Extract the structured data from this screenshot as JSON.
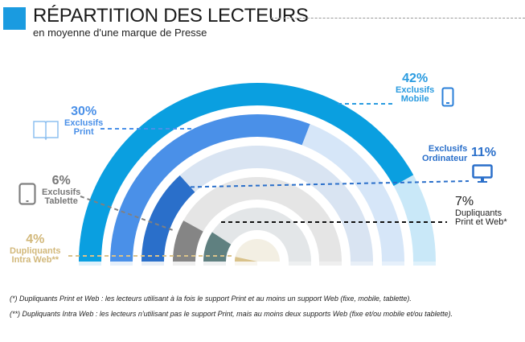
{
  "header": {
    "title": "RÉPARTITION DES LECTEURS",
    "subtitle": "en moyenne d'une marque de Presse",
    "accent_color": "#1a9be0"
  },
  "chart_data": {
    "type": "radial-bar",
    "segments": [
      {
        "pct": "42%",
        "value": 42,
        "label_1": "Exclusifs",
        "label_2": "Mobile",
        "icon": "smartphone-icon",
        "color": "#0a9fe0",
        "track": "#c9e8f8"
      },
      {
        "pct": "30%",
        "value": 30,
        "label_1": "Exclusifs",
        "label_2": "Print",
        "icon": "book-icon",
        "color": "#4a90e8",
        "track": "#d6e6f8"
      },
      {
        "pct": "11%",
        "value": 11,
        "label_1": "Exclusifs",
        "label_2": "Ordinateur",
        "icon": "monitor-icon",
        "color": "#2a6fca",
        "track": "#d9e4f2"
      },
      {
        "pct": "6%",
        "value": 6,
        "label_1": "Exclusifs",
        "label_2": "Tablette",
        "icon": "tablet-icon",
        "color": "#858585",
        "track": "#e5e5e5"
      },
      {
        "pct": "7%",
        "value": 7,
        "label_1": "Dupliquants",
        "label_2": "Print et Web*",
        "icon": "",
        "color": "#5f8080",
        "track": "#e3e6e8"
      },
      {
        "pct": "4%",
        "value": 4,
        "label_1": "Dupliquants",
        "label_2": "Intra Web**",
        "icon": "",
        "color": "#d9c28a",
        "track": "#f3efe3"
      }
    ]
  },
  "notes": [
    "(*) Dupliquants Print et Web : les lecteurs utilisant à la fois le support Print et au moins un support Web (fixe, mobile, tablette).",
    "(**) Dupliquants Intra Web : les lecteurs n'utilisant pas le support Print, mais au moins deux supports Web (fixe et/ou mobile et/ou tablette)."
  ]
}
